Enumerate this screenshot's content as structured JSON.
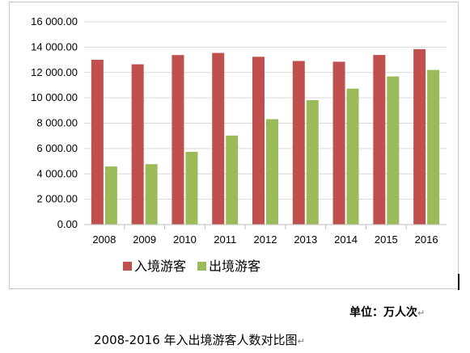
{
  "chart_data": {
    "type": "bar",
    "categories": [
      "2008",
      "2009",
      "2010",
      "2011",
      "2012",
      "2013",
      "2014",
      "2015",
      "2016"
    ],
    "series": [
      {
        "name": "入境游客",
        "color": "#c0504d",
        "values": [
          13003,
          12648,
          13376,
          13542,
          13241,
          12908,
          12850,
          13382,
          13844
        ]
      },
      {
        "name": "出境游客",
        "color": "#9bbb59",
        "values": [
          4584,
          4766,
          5739,
          7025,
          8318,
          9819,
          10728,
          11689,
          12203
        ]
      }
    ],
    "ylim": [
      0,
      16000
    ],
    "yticks": [
      "0.00",
      "2 000.00",
      "4 000.00",
      "6 000.00",
      "8 000.00",
      "10 000.00",
      "12 000.00",
      "14 000.00",
      "16 000.00"
    ],
    "grid": true,
    "legend_position": "bottom-left"
  },
  "unit_note": "单位：万人次",
  "caption": "2008-2016 年入出境游客人数对比图",
  "para_mark": "↵"
}
